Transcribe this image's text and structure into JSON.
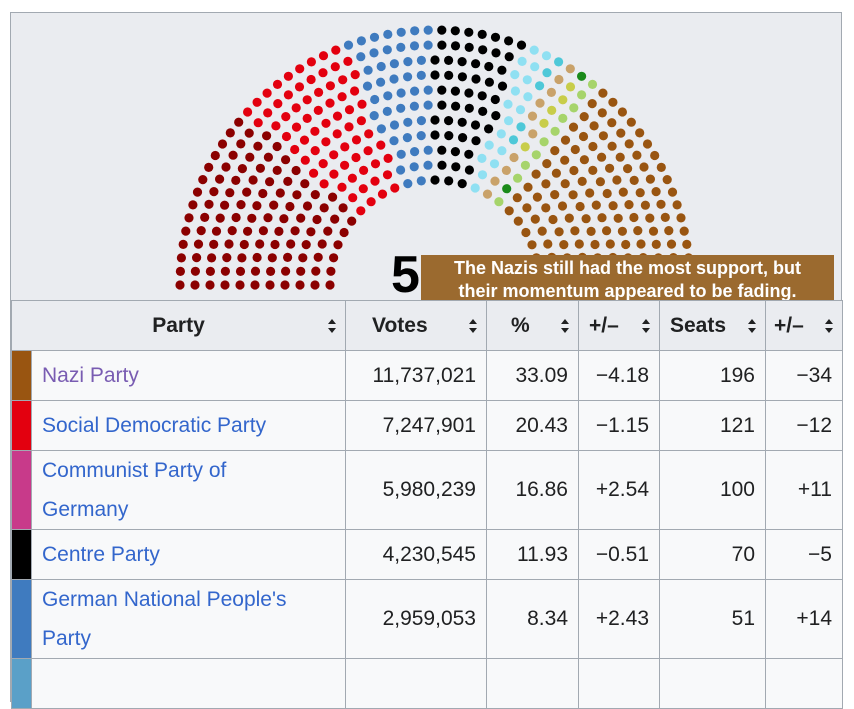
{
  "hemicycle": {
    "total_seats": "584",
    "tooltip_line1": "The Nazis still had the most support, but",
    "tooltip_line2": "their momentum appeared to be fading.",
    "ring_colors": {
      "KPD_dark": "#8b0000",
      "SPD": "#e3000f",
      "DNVP": "#3f7bbf",
      "Centre": "#000000",
      "lightblue": "#8fe0f2",
      "tan": "#c9a26a",
      "green": "#1a8a1a",
      "lightgreen": "#a6d46b",
      "yellowgreen": "#c8cd4a",
      "NSDAP": "#995511",
      "aqua": "#4ec8d8"
    }
  },
  "table": {
    "headers": {
      "party": "Party",
      "votes": "Votes",
      "percent": "%",
      "pct_change": "+/–",
      "seats": "Seats",
      "seat_change": "+/–"
    },
    "rows": [
      {
        "color": "#995511",
        "party": "Nazi Party",
        "visited": true,
        "votes": "11,737,021",
        "percent": "33.09",
        "pct_change": "−4.18",
        "seats": "196",
        "seat_change": "−34"
      },
      {
        "color": "#e3000f",
        "party": "Social Democratic Party",
        "visited": false,
        "votes": "7,247,901",
        "percent": "20.43",
        "pct_change": "−1.15",
        "seats": "121",
        "seat_change": "−12"
      },
      {
        "color": "#c83a8a",
        "party": "Communist Party of Germany",
        "visited": false,
        "votes": "5,980,239",
        "percent": "16.86",
        "pct_change": "+2.54",
        "seats": "100",
        "seat_change": "+11"
      },
      {
        "color": "#000000",
        "party": "Centre Party",
        "visited": false,
        "votes": "4,230,545",
        "percent": "11.93",
        "pct_change": "−0.51",
        "seats": "70",
        "seat_change": "−5"
      },
      {
        "color": "#3f7bbf",
        "party": "German National People's Party",
        "visited": false,
        "votes": "2,959,053",
        "percent": "8.34",
        "pct_change": "+2.43",
        "seats": "51",
        "seat_change": "+14"
      }
    ]
  }
}
